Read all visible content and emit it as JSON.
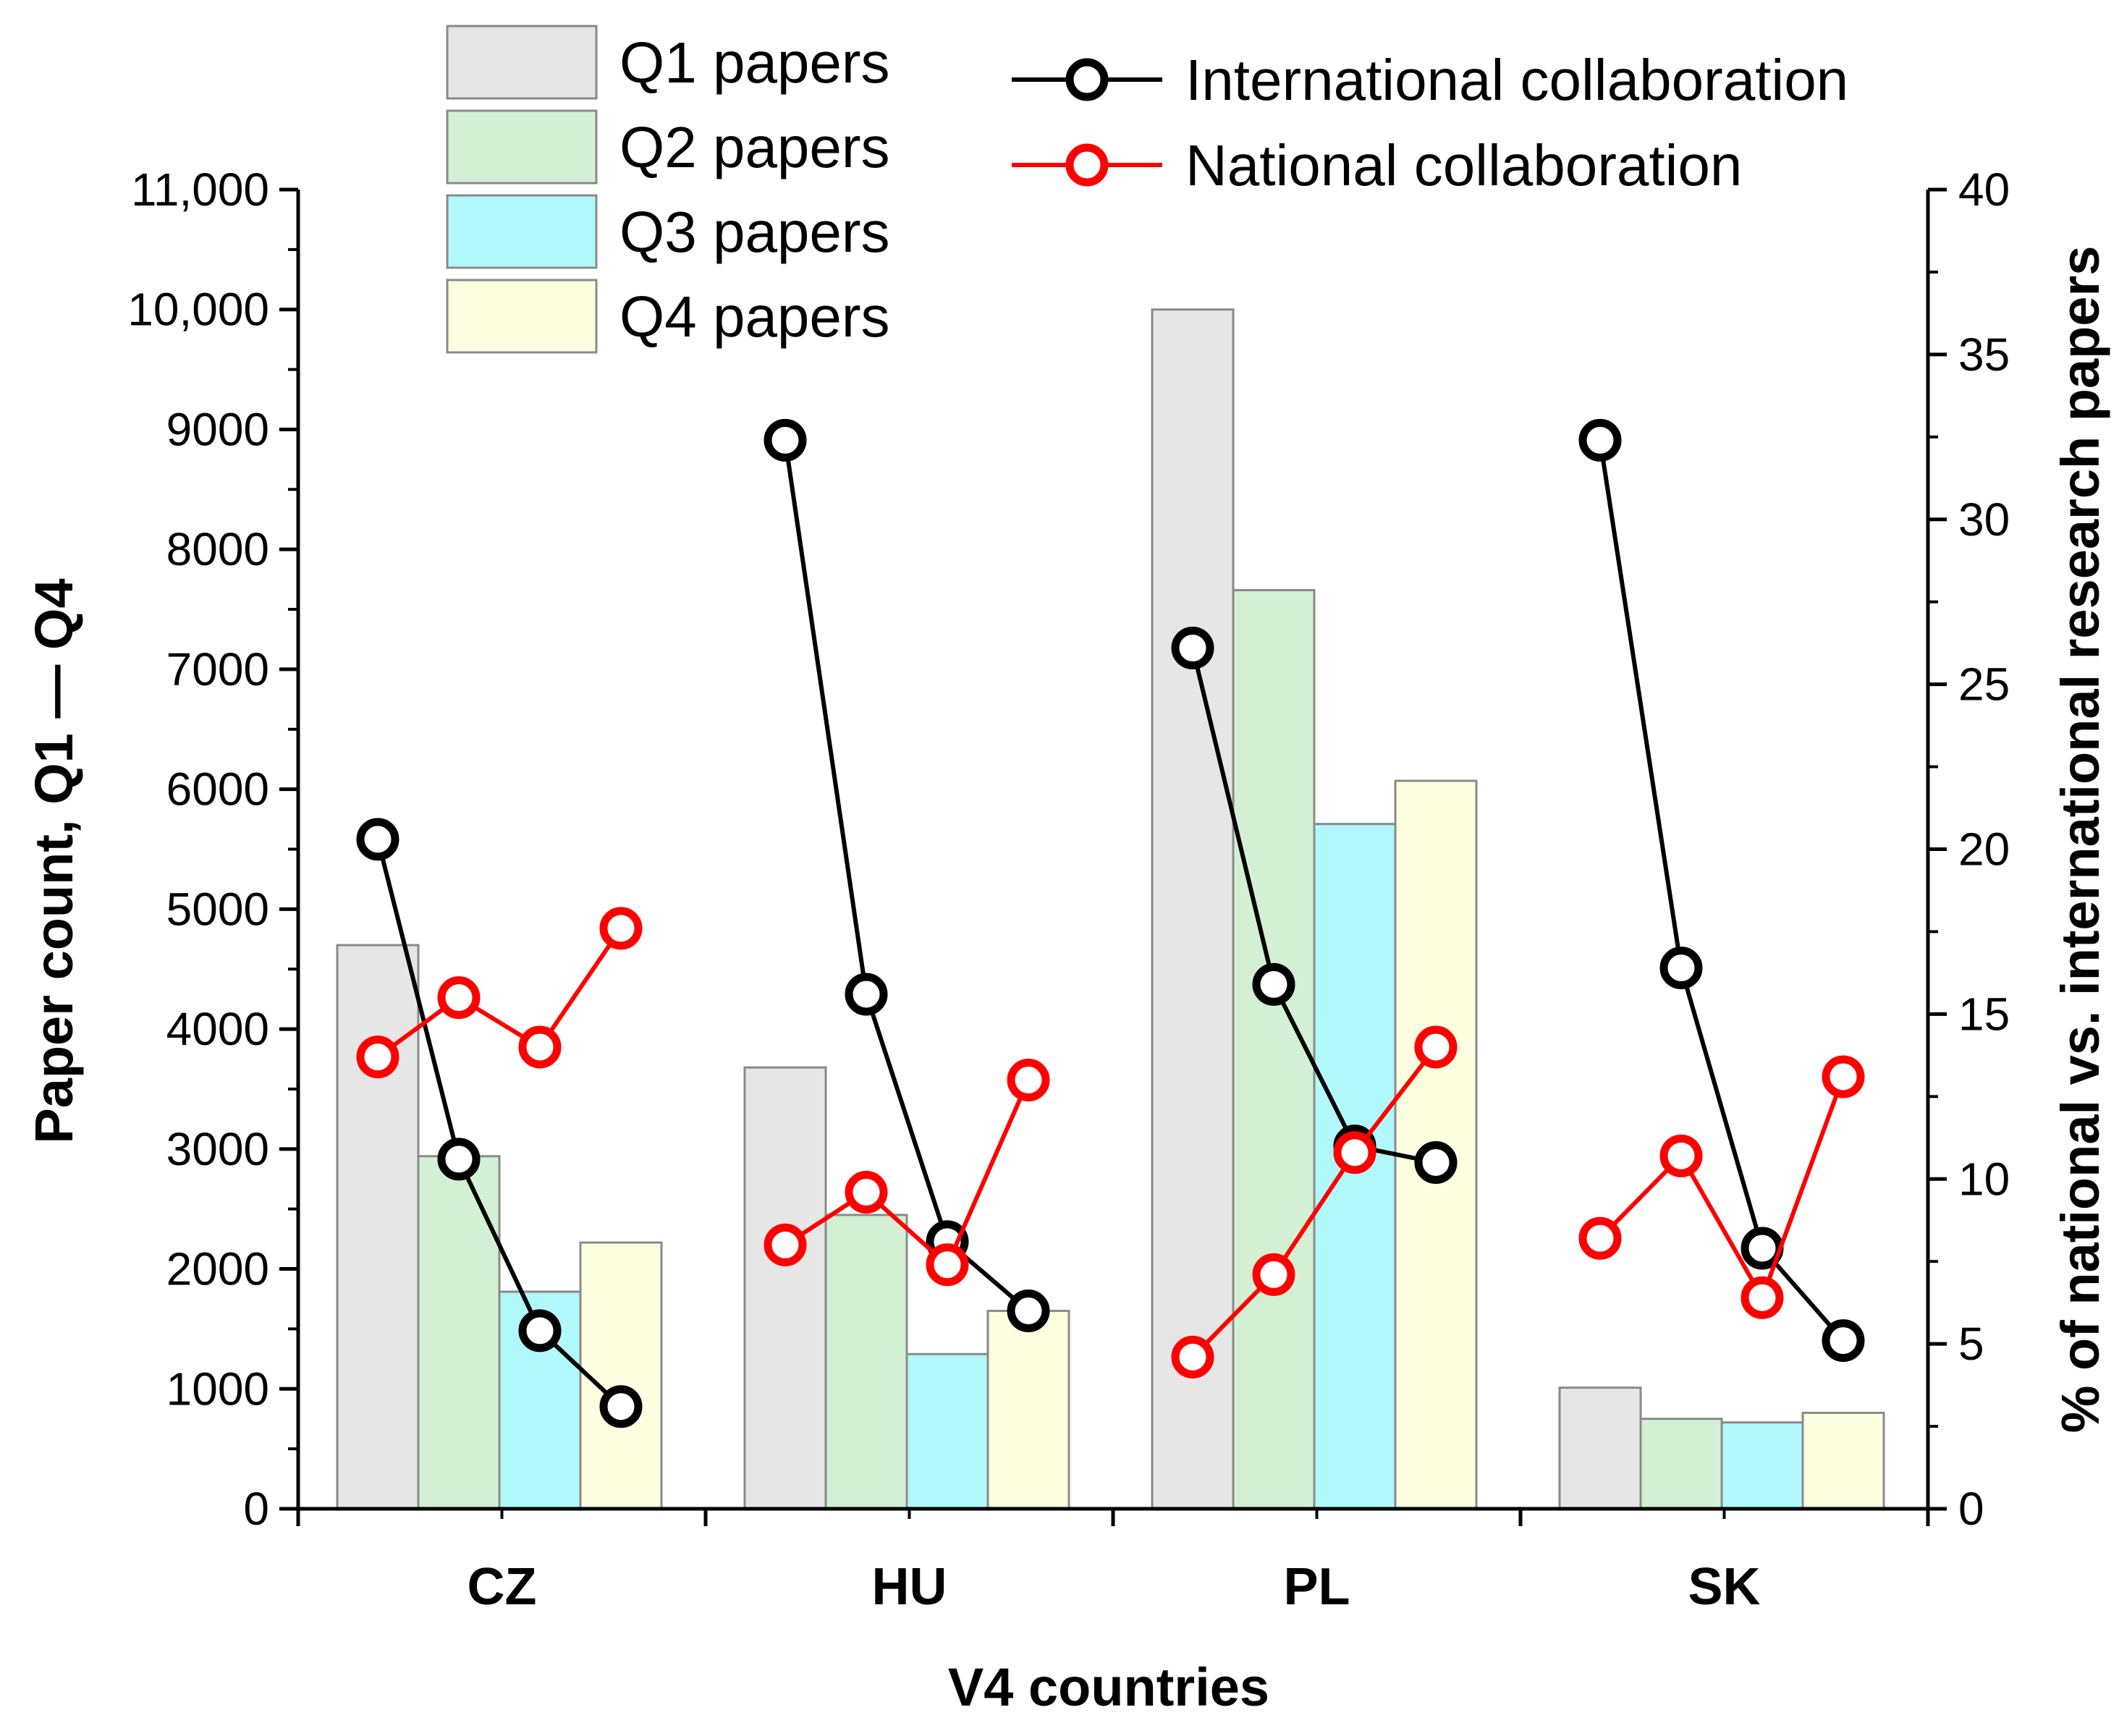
{
  "chart_data": {
    "type": "bar",
    "xlabel": "V4 countries",
    "ylabel": "Paper count, Q1 — Q4",
    "y2label": "% of national vs. international research papers",
    "categories": [
      "CZ",
      "HU",
      "PL",
      "SK"
    ],
    "ylim": [
      0,
      11000
    ],
    "y2lim": [
      0,
      40
    ],
    "yticks": [
      "0",
      "1000",
      "2000",
      "3000",
      "4000",
      "5000",
      "6000",
      "7000",
      "8000",
      "9000",
      "10,000",
      "11,000"
    ],
    "y2ticks": [
      "0",
      "5",
      "10",
      "15",
      "20",
      "25",
      "30",
      "35",
      "40"
    ],
    "grid": false,
    "legend_bars_position": "top-left",
    "legend_lines_position": "top-right",
    "series": [
      {
        "name": "Q1 papers",
        "color": "#e6e6e6",
        "values": [
          4700,
          3680,
          10000,
          1010
        ]
      },
      {
        "name": "Q2 papers",
        "color": "#d4f0d4",
        "values": [
          2940,
          2450,
          7660,
          750
        ]
      },
      {
        "name": "Q3 papers",
        "color": "#b0f8fa",
        "values": [
          1810,
          1290,
          5710,
          720
        ]
      },
      {
        "name": "Q4 papers",
        "color": "#fdfee0",
        "values": [
          2220,
          1650,
          6070,
          800
        ]
      }
    ],
    "line_series": [
      {
        "name": "International collaboration",
        "color": "#000000",
        "axis": "right",
        "values": [
          [
            20.3,
            10.6,
            5.4,
            3.1
          ],
          [
            32.4,
            15.6,
            8.1,
            6.0
          ],
          [
            26.1,
            15.9,
            11.0,
            10.5
          ],
          [
            32.4,
            16.4,
            7.9,
            5.1
          ]
        ]
      },
      {
        "name": "National collaboration",
        "color": "#ff0000",
        "axis": "right",
        "values": [
          [
            13.7,
            15.5,
            14.0,
            17.6
          ],
          [
            8.0,
            9.6,
            7.4,
            13.0
          ],
          [
            4.6,
            7.1,
            10.8,
            14.0
          ],
          [
            8.2,
            10.7,
            6.4,
            13.1
          ]
        ]
      }
    ]
  }
}
